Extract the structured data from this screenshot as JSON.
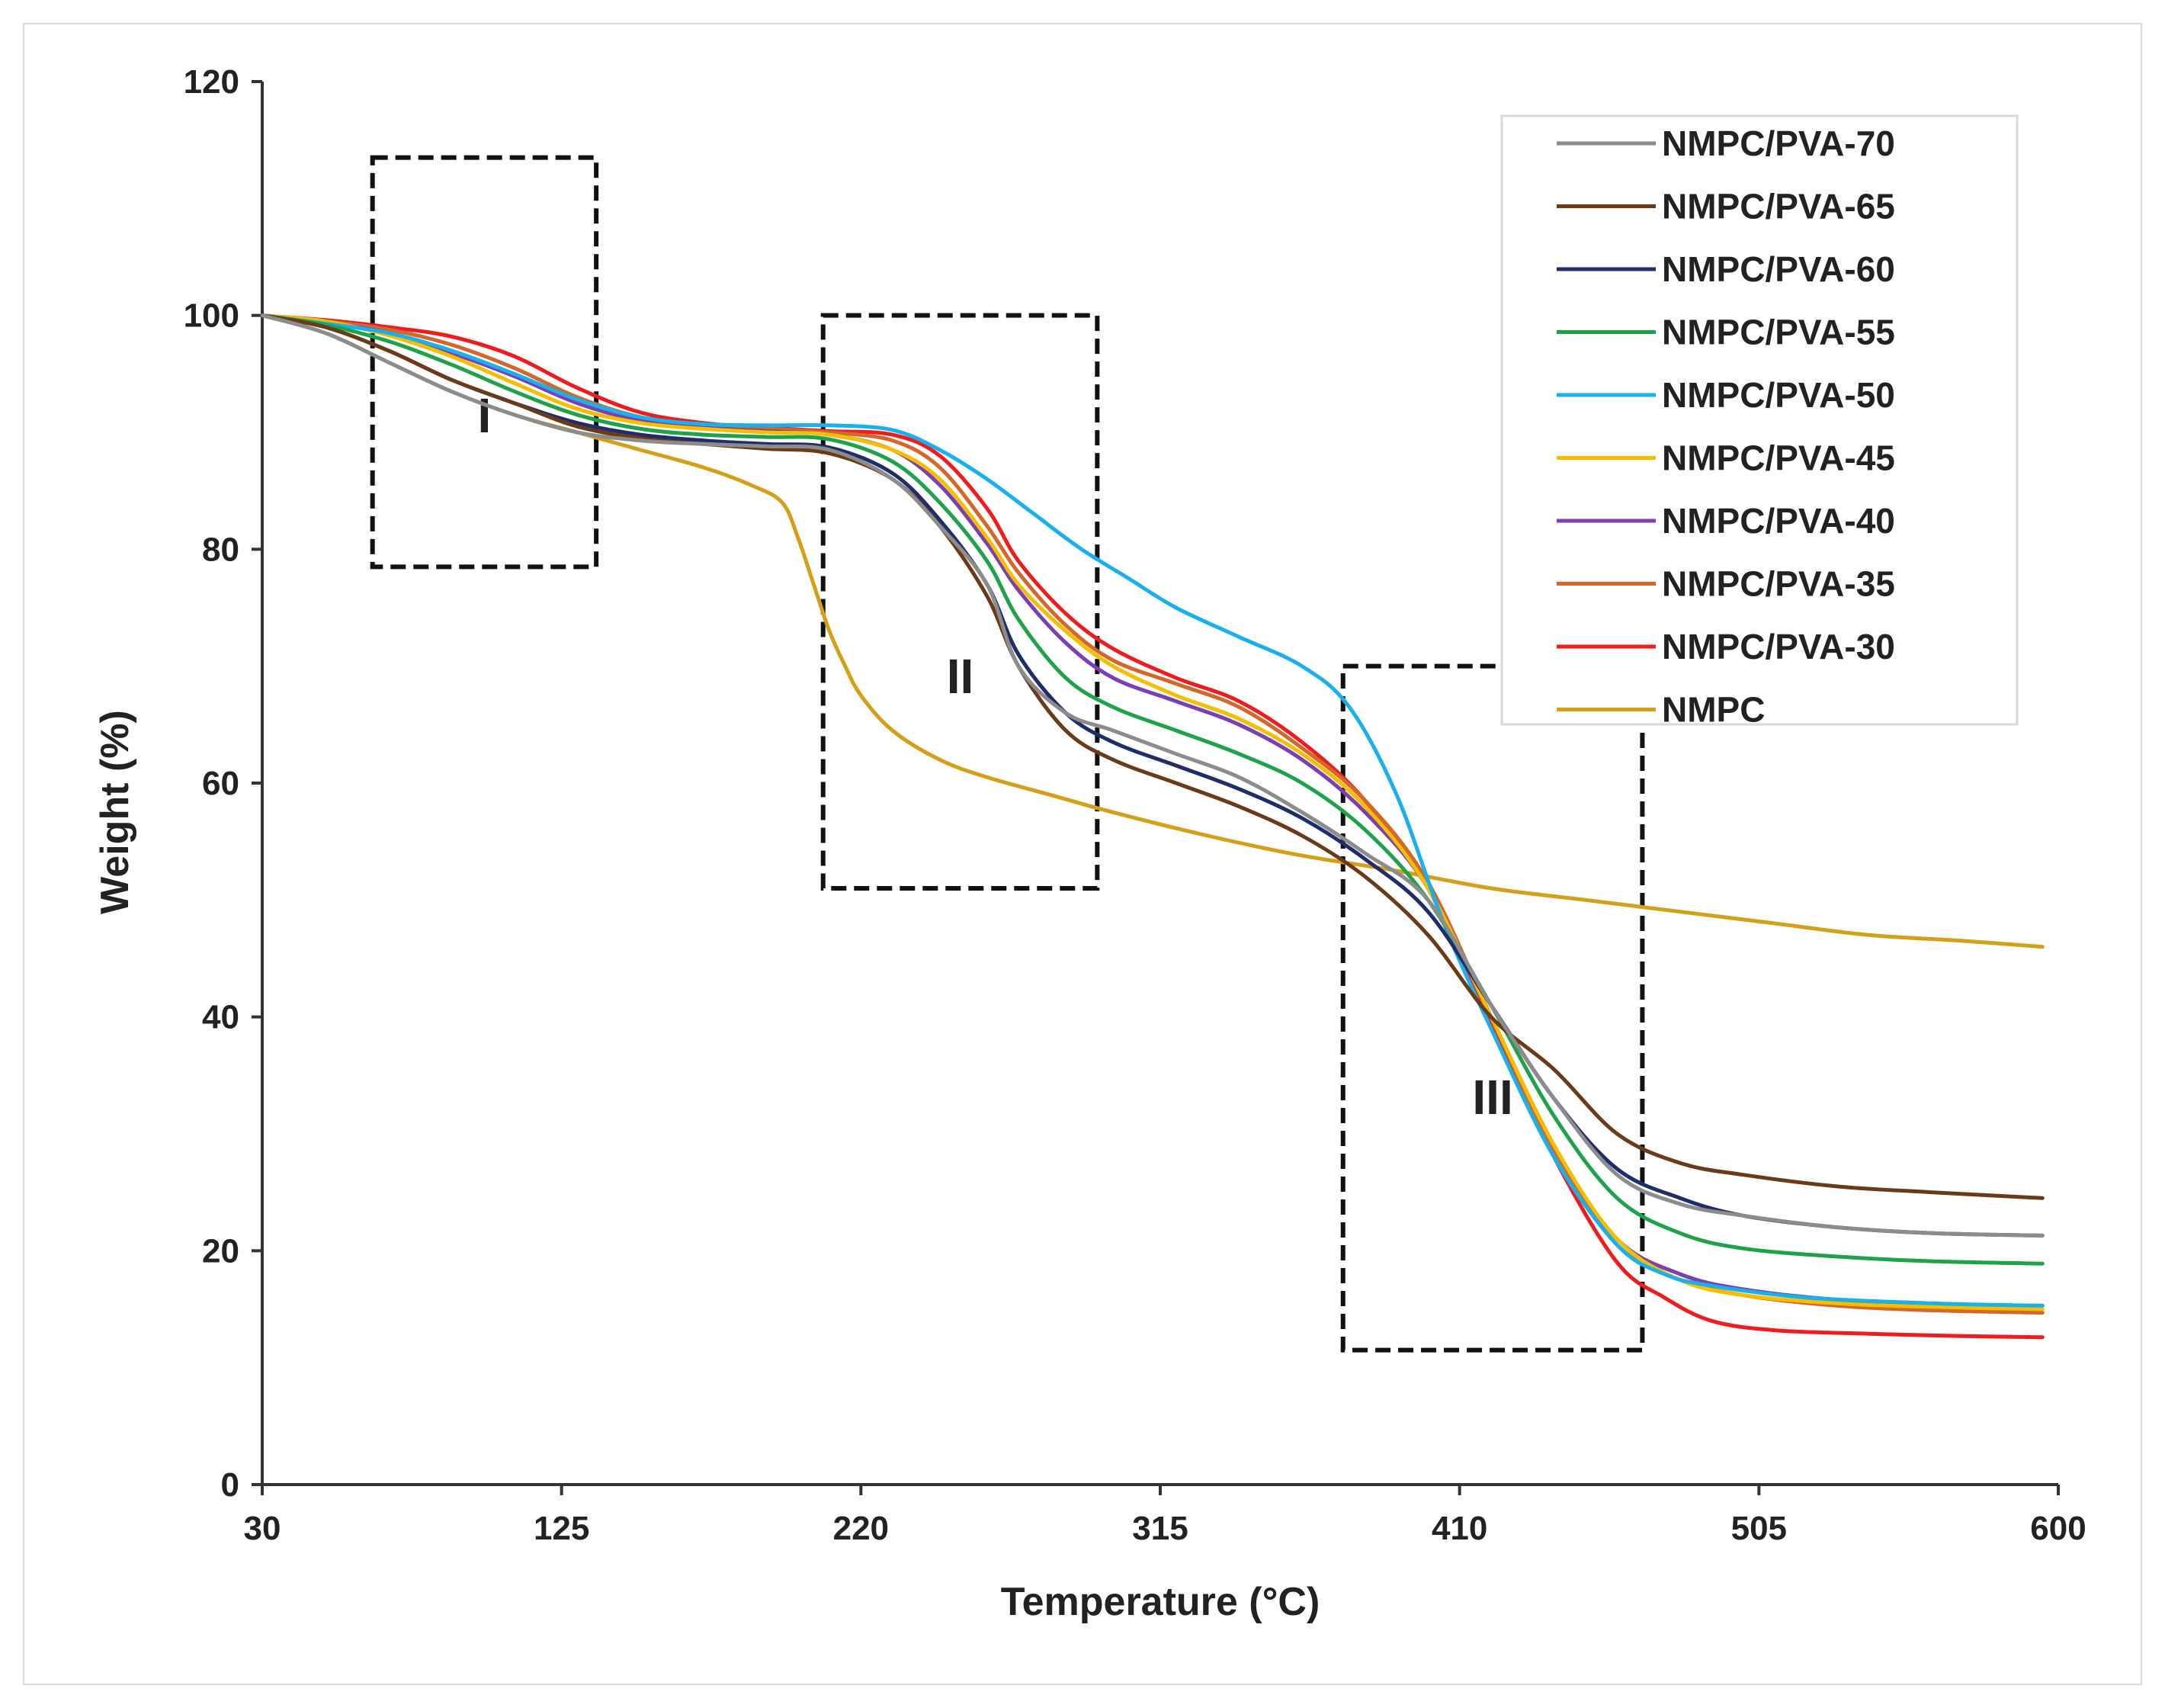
{
  "chart_data": {
    "type": "line",
    "title": "",
    "xlabel": "Temperature (°C)",
    "ylabel": "Weight (%)",
    "xlim": [
      30,
      600
    ],
    "ylim": [
      0,
      120
    ],
    "xticks": [
      30,
      125,
      220,
      315,
      410,
      505,
      600
    ],
    "yticks": [
      0,
      20,
      40,
      60,
      80,
      100,
      120
    ],
    "grid": false,
    "legend_position": "top-right",
    "regions": [
      {
        "label": "I",
        "x": [
          65,
          136
        ],
        "y": [
          78.5,
          113.5
        ]
      },
      {
        "label": "II",
        "x": [
          208,
          295
        ],
        "y": [
          51,
          100
        ]
      },
      {
        "label": "III",
        "x": [
          373,
          468
        ],
        "y": [
          11.5,
          70
        ]
      }
    ],
    "series": [
      {
        "name": "NMPC/PVA-70",
        "color": "#8c8c8c",
        "x": [
          30,
          50,
          70,
          90,
          110,
          130,
          150,
          170,
          190,
          210,
          230,
          245,
          260,
          270,
          285,
          300,
          320,
          340,
          360,
          380,
          400,
          420,
          440,
          460,
          480,
          500,
          530,
          560,
          595
        ],
        "y": [
          100,
          98.5,
          96,
          93.5,
          91.5,
          90,
          89.3,
          89,
          88.8,
          88.5,
          86,
          82,
          77,
          70,
          66,
          64.5,
          62.5,
          60.5,
          57.5,
          54,
          50,
          41,
          33,
          26.5,
          24,
          23,
          22,
          21.5,
          21.3
        ]
      },
      {
        "name": "NMPC/PVA-65",
        "color": "#6b3a17",
        "x": [
          30,
          50,
          70,
          90,
          110,
          130,
          150,
          170,
          190,
          210,
          230,
          245,
          260,
          270,
          285,
          300,
          320,
          340,
          360,
          380,
          400,
          420,
          440,
          460,
          480,
          500,
          530,
          560,
          595
        ],
        "y": [
          100,
          99,
          97,
          94.5,
          92.5,
          90.5,
          89.5,
          89,
          88.6,
          88.2,
          86,
          82,
          76,
          70,
          64.5,
          62,
          60,
          58,
          55.5,
          52,
          47,
          40,
          35.5,
          30,
          27.5,
          26.5,
          25.5,
          25,
          24.5
        ]
      },
      {
        "name": "NMPC/PVA-60",
        "color": "#1f2d6b",
        "x": [
          30,
          50,
          70,
          90,
          110,
          130,
          150,
          170,
          190,
          210,
          230,
          245,
          260,
          270,
          285,
          300,
          320,
          340,
          360,
          380,
          400,
          420,
          440,
          460,
          480,
          500,
          530,
          560,
          595
        ],
        "y": [
          100,
          99,
          97,
          94.5,
          92.5,
          90.8,
          89.8,
          89.3,
          89,
          88.7,
          86.5,
          82.5,
          77,
          71,
          66,
          63.5,
          61.5,
          59.5,
          57,
          53.5,
          49,
          41,
          33,
          27,
          24.5,
          23,
          22,
          21.5,
          21.3
        ]
      },
      {
        "name": "NMPC/PVA-55",
        "color": "#1fa34a",
        "x": [
          30,
          50,
          70,
          90,
          110,
          130,
          150,
          170,
          190,
          210,
          230,
          245,
          260,
          270,
          285,
          300,
          320,
          340,
          360,
          380,
          400,
          420,
          440,
          460,
          480,
          500,
          530,
          560,
          595
        ],
        "y": [
          100,
          99.2,
          97.8,
          95.8,
          93.5,
          91.5,
          90.3,
          89.8,
          89.6,
          89.4,
          87.5,
          84,
          79,
          74,
          69,
          66.5,
          64.5,
          62.5,
          60,
          56,
          50,
          41,
          31.5,
          24.5,
          21.5,
          20.2,
          19.5,
          19.1,
          18.9
        ]
      },
      {
        "name": "NMPC/PVA-50",
        "color": "#1ab0ee",
        "x": [
          30,
          50,
          70,
          90,
          110,
          130,
          150,
          170,
          190,
          210,
          230,
          245,
          260,
          275,
          290,
          305,
          320,
          340,
          360,
          375,
          390,
          405,
          420,
          440,
          460,
          475,
          490,
          520,
          560,
          595
        ],
        "y": [
          100,
          99.3,
          98.5,
          97,
          95,
          92.8,
          91.3,
          90.7,
          90.6,
          90.6,
          90.2,
          88.5,
          86,
          83,
          80,
          77.5,
          75,
          72.5,
          70,
          66.5,
          59,
          48,
          39,
          28,
          20.5,
          18,
          17,
          16,
          15.5,
          15.3
        ]
      },
      {
        "name": "NMPC/PVA-45",
        "color": "#f5bf00",
        "x": [
          30,
          50,
          70,
          90,
          110,
          130,
          150,
          170,
          190,
          210,
          230,
          245,
          260,
          270,
          285,
          300,
          320,
          340,
          360,
          380,
          400,
          420,
          440,
          460,
          480,
          500,
          530,
          560,
          595
        ],
        "y": [
          100,
          99.5,
          98.3,
          96.5,
          94.2,
          92,
          90.8,
          90.3,
          90,
          89.8,
          88.5,
          86,
          81,
          77,
          73,
          70,
          67.5,
          65.5,
          62.5,
          58,
          51,
          40,
          29,
          21,
          17.5,
          16.2,
          15.5,
          15.2,
          15.0
        ]
      },
      {
        "name": "NMPC/PVA-40",
        "color": "#7b3fb0",
        "x": [
          30,
          50,
          70,
          90,
          110,
          130,
          150,
          170,
          190,
          210,
          230,
          245,
          260,
          270,
          285,
          300,
          320,
          340,
          360,
          380,
          400,
          420,
          440,
          460,
          480,
          500,
          530,
          560,
          595
        ],
        "y": [
          100,
          99.4,
          98.5,
          96.8,
          94.8,
          92.5,
          91,
          90.4,
          90.1,
          89.8,
          88.5,
          85.5,
          80.5,
          76.5,
          72,
          69,
          67,
          65,
          62,
          57.5,
          51,
          40,
          29,
          21,
          18,
          16.7,
          15.8,
          15.4,
          15.3
        ]
      },
      {
        "name": "NMPC/PVA-35",
        "color": "#d4672a",
        "x": [
          30,
          50,
          70,
          90,
          110,
          130,
          150,
          170,
          190,
          210,
          230,
          245,
          260,
          270,
          285,
          300,
          320,
          340,
          360,
          380,
          400,
          420,
          440,
          460,
          480,
          500,
          530,
          560,
          595
        ],
        "y": [
          100,
          99.5,
          98.8,
          97.5,
          95.5,
          93,
          91.3,
          90.6,
          90.3,
          90,
          89.3,
          87,
          82,
          78,
          73.5,
          70.5,
          68.5,
          66.5,
          63,
          58.5,
          51.5,
          40,
          28.5,
          20.5,
          17.5,
          16.2,
          15.3,
          14.9,
          14.7
        ]
      },
      {
        "name": "NMPC/PVA-30",
        "color": "#ee1c1c",
        "x": [
          30,
          50,
          70,
          90,
          110,
          130,
          150,
          170,
          190,
          210,
          230,
          245,
          260,
          270,
          285,
          300,
          320,
          340,
          360,
          380,
          400,
          420,
          440,
          460,
          475,
          490,
          510,
          540,
          570,
          595
        ],
        "y": [
          100,
          99.6,
          99,
          98.2,
          96.5,
          93.8,
          91.7,
          90.8,
          90.4,
          90.1,
          89.8,
          88,
          83.5,
          79,
          74.5,
          71.5,
          69,
          67,
          63.5,
          58.5,
          51,
          39.5,
          28,
          19,
          16,
          14,
          13.2,
          12.9,
          12.7,
          12.6
        ]
      },
      {
        "name": "NMPC",
        "color": "#d4a017",
        "x": [
          30,
          50,
          70,
          90,
          110,
          130,
          150,
          170,
          185,
          195,
          200,
          205,
          210,
          215,
          220,
          230,
          245,
          260,
          280,
          300,
          330,
          360,
          390,
          420,
          450,
          480,
          510,
          540,
          570,
          595
        ],
        "y": [
          100,
          98.5,
          96,
          93.5,
          91.5,
          90,
          88.5,
          87,
          85.5,
          84,
          81,
          77,
          73,
          70,
          67.5,
          64.5,
          62,
          60.5,
          59,
          57.5,
          55.5,
          53.8,
          52.5,
          51,
          50,
          49,
          48,
          47,
          46.5,
          46
        ]
      }
    ]
  }
}
